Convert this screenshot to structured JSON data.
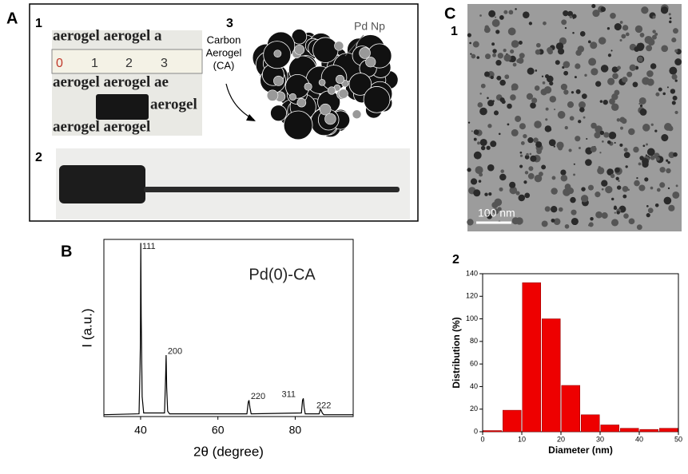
{
  "panels": {
    "A": "A",
    "A1": "1",
    "A2": "2",
    "A3": "3",
    "B": "B",
    "C": "C",
    "C1": "1",
    "C2": "2"
  },
  "photo_text": [
    "aerogel aerogel a",
    "aerogel aerogel ae",
    "aerogel",
    "aerogel aerogel"
  ],
  "ruler": [
    "0",
    "1",
    "2",
    "3"
  ],
  "diagram": {
    "carbon_label": [
      "Carbon",
      "Aerogel",
      "(CA)"
    ],
    "pd_label": "Pd Np"
  },
  "scale_bar": "100 nm",
  "chart_data": [
    {
      "type": "line",
      "xlabel": "2θ (degree)",
      "ylabel": "I (a.u.)",
      "color": "#000000",
      "x": [
        30.5,
        39.6,
        39.85,
        39.95,
        40.05,
        40.15,
        40.4,
        40.8,
        46.2,
        46.45,
        46.6,
        46.75,
        47.0,
        47.5,
        67.5,
        67.85,
        68.05,
        68.3,
        68.6,
        81.6,
        81.9,
        82.1,
        82.3,
        82.6,
        86.2,
        86.5,
        86.7,
        87.0,
        87.4,
        95
      ],
      "values": [
        5,
        5.5,
        30,
        45,
        100,
        60,
        15,
        6,
        6,
        25,
        38,
        20,
        7,
        5.5,
        5.5,
        12,
        13,
        9,
        5.5,
        6,
        13,
        14,
        9,
        5.5,
        5.5,
        8,
        7.5,
        6,
        5,
        5
      ],
      "xlim": [
        30.5,
        95
      ],
      "xticks": [
        40,
        60,
        80
      ],
      "ylim": [
        4,
        102
      ],
      "annotations": [
        {
          "text": "111",
          "x": 40.4,
          "y": 98
        },
        {
          "text": "200",
          "x": 47.0,
          "y": 40
        },
        {
          "text": "220",
          "x": 68.5,
          "y": 15
        },
        {
          "text": "311",
          "x": 76.5,
          "y": 16
        },
        {
          "text": "222",
          "x": 85.5,
          "y": 10
        },
        {
          "text": "Pd(0)-CA",
          "x": 68,
          "y": 82
        }
      ]
    },
    {
      "type": "histogram",
      "xlabel": "Diameter (nm)",
      "ylabel": "Distribution (%)",
      "color": "#ee0000",
      "bins": [
        0,
        5,
        10,
        15,
        20,
        25,
        30,
        35,
        40,
        45,
        50
      ],
      "values": [
        1,
        19,
        132,
        100,
        41,
        15,
        6,
        3,
        2,
        3
      ],
      "xlim": [
        0,
        50
      ],
      "xticks": [
        0,
        10,
        20,
        30,
        40,
        50
      ],
      "ylim": [
        0,
        140
      ],
      "yticks": [
        0,
        20,
        40,
        60,
        80,
        100,
        120,
        140
      ]
    }
  ]
}
